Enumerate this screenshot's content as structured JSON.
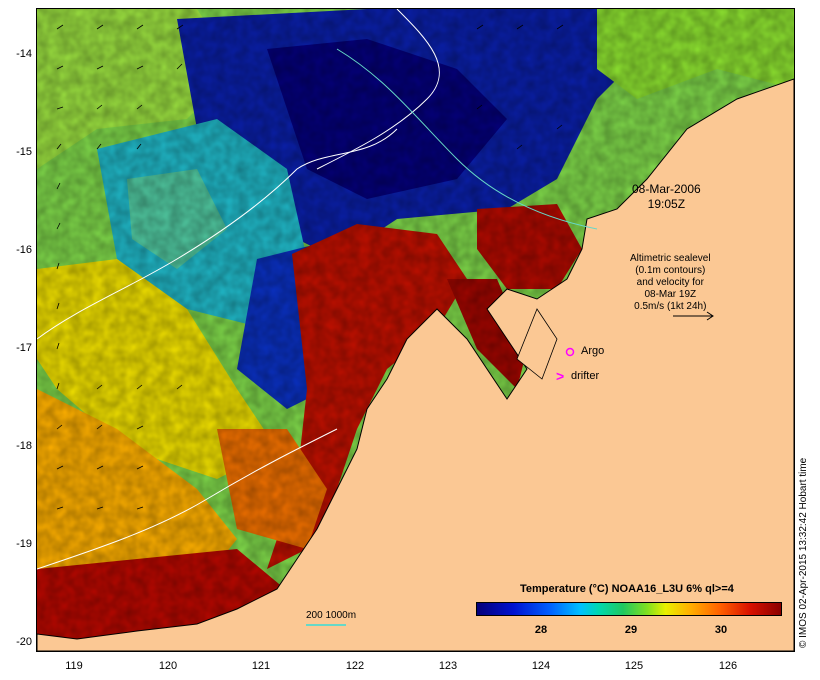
{
  "map": {
    "type": "sea-surface-temperature",
    "lat_ticks": [
      "-14",
      "-15",
      "-16",
      "-17",
      "-18",
      "-19",
      "-20"
    ],
    "lon_ticks": [
      "119",
      "120",
      "121",
      "122",
      "123",
      "124",
      "125",
      "126"
    ],
    "date_line1": "08-Mar-2006",
    "date_line2": "19:05Z",
    "alt_line1": "Altimetric sealevel",
    "alt_line2": "(0.1m contours)",
    "alt_line3": "and velocity for",
    "alt_line4": "08-Mar 19Z",
    "alt_line5": "0.5m/s (1kt 24h)",
    "argo_label": "Argo",
    "drifter_label": "drifter",
    "colorbar_title": "Temperature (°C) NOAA16_L3U 6% ql>=4",
    "colorbar_ticks": [
      "28",
      "29",
      "30"
    ],
    "scale_label": "200  1000m",
    "credit": "© IMOS 02-Apr-2015 13:32:42 Hobart time",
    "colors": {
      "land": "#fbc894",
      "cold": "#04007a",
      "warm": "#8a0000",
      "argo": "#ff00ff",
      "drifter": "#ff00ff",
      "contour": "#ffffff",
      "isobath": "#66d8c8"
    }
  }
}
